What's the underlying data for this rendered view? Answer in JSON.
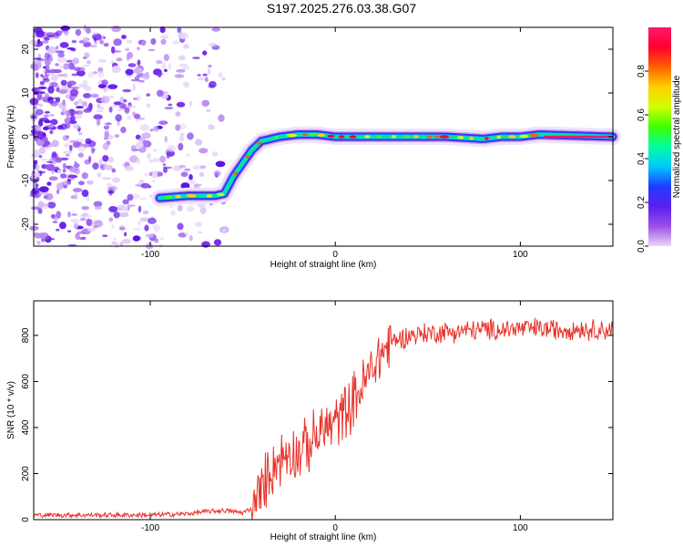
{
  "title": "S197.2025.276.03.38.G07",
  "chart_data": [
    {
      "type": "heatmap",
      "title": "S197.2025.276.03.38.G07",
      "xlabel": "Height of straight line (km)",
      "ylabel": "Frequency (Hz)",
      "xlim": [
        -163,
        150
      ],
      "ylim": [
        -25,
        25
      ],
      "xticks": [
        -100,
        0,
        100
      ],
      "yticks": [
        -20,
        -10,
        0,
        10,
        20
      ],
      "colorbar": {
        "label": "Normalized spectral amplitude",
        "range": [
          0,
          1
        ],
        "ticks": [
          "0.0",
          "0.2",
          "0.4",
          "0.6",
          "0.8"
        ],
        "colors": [
          "#e8d8f8",
          "#9b4fe8",
          "#5a1ff0",
          "#1f3cff",
          "#00c8ff",
          "#00ffa0",
          "#40ff00",
          "#d0ff00",
          "#ffd000",
          "#ff6000",
          "#ff0030",
          "#ff1a6a"
        ]
      },
      "signal_track": {
        "description_points_x": [
          -95,
          -80,
          -65,
          -60,
          -55,
          -50,
          -45,
          -40,
          -30,
          -20,
          -10,
          0,
          10,
          20,
          40,
          60,
          80,
          90,
          100,
          110,
          150
        ],
        "description_points_y": [
          -14,
          -13.5,
          -13.5,
          -13,
          -9,
          -6,
          -3,
          -1,
          0,
          0.5,
          0.5,
          0,
          0,
          0,
          0,
          0,
          -0.5,
          0,
          0,
          0.5,
          0
        ],
        "noise_region_x": [
          -163,
          -60
        ]
      }
    },
    {
      "type": "line",
      "xlabel": "Height of straight line (km)",
      "ylabel": "SNR (10 * v/v)",
      "xlim": [
        -163,
        150
      ],
      "ylim": [
        0,
        950
      ],
      "xticks": [
        -100,
        0,
        100
      ],
      "yticks": [
        0,
        200,
        400,
        600,
        800
      ],
      "series": [
        {
          "name": "SNR",
          "color": "#e8322a",
          "x": [
            -163,
            -140,
            -120,
            -100,
            -80,
            -70,
            -60,
            -50,
            -45,
            -40,
            -35,
            -30,
            -25,
            -20,
            -15,
            -10,
            -5,
            0,
            5,
            10,
            15,
            20,
            25,
            30,
            40,
            50,
            60,
            70,
            80,
            90,
            100,
            110,
            120,
            130,
            140,
            150
          ],
          "y": [
            20,
            20,
            20,
            20,
            25,
            35,
            40,
            30,
            50,
            120,
            220,
            260,
            300,
            290,
            320,
            360,
            400,
            420,
            470,
            520,
            580,
            660,
            720,
            770,
            800,
            810,
            815,
            820,
            825,
            825,
            830,
            830,
            825,
            830,
            825,
            825
          ]
        }
      ]
    }
  ]
}
